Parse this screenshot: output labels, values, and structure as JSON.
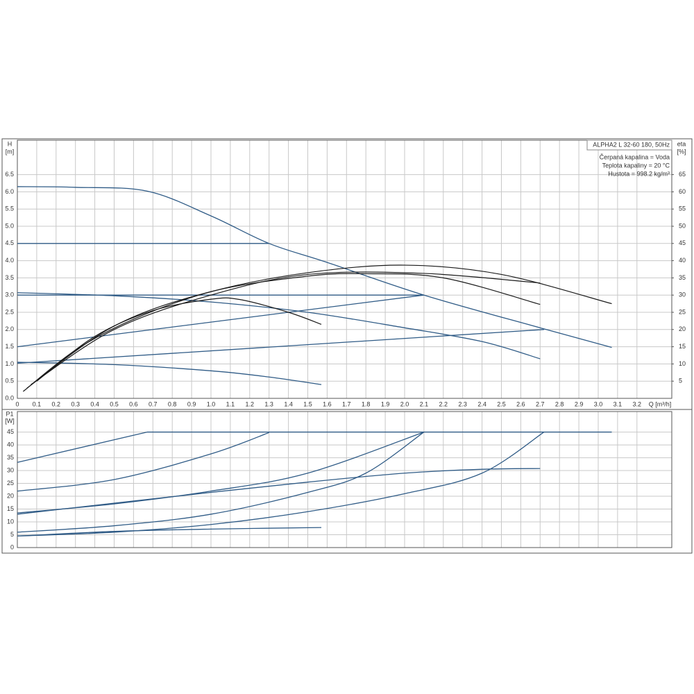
{
  "chart_data": [
    {
      "type": "line",
      "ylabel": "H",
      "yunit": "[m]",
      "y2label": "eta",
      "y2unit": "[%]",
      "xlabel": "Q [m³/h]",
      "annotations": [
        "ALPHA2 L 32-60 180, 50Hz",
        "Čerpaná kapalina = Voda",
        "Teplota kapaliny = 20 °C",
        "Hustota = 998.2 kg/m³"
      ],
      "xlim": [
        0,
        3.38
      ],
      "ylim": [
        0,
        7.5
      ],
      "y2lim": [
        0,
        75
      ],
      "xticks": [
        0,
        0.1,
        0.2,
        0.3,
        0.4,
        0.5,
        0.6,
        0.7,
        0.8,
        0.9,
        {
          "value": 1,
          "label": "1.0"
        },
        1.1,
        1.2,
        1.3,
        1.4,
        1.5,
        1.6,
        1.7,
        1.8,
        1.9,
        {
          "value": 2,
          "label": "2.0"
        },
        2.1,
        2.2,
        2.3,
        2.4,
        2.5,
        2.6,
        2.7,
        2.8,
        2.9,
        {
          "value": 3,
          "label": "3.0"
        },
        3.1,
        3.2
      ],
      "yticks": [
        {
          "value": 0,
          "label": "0.0"
        },
        0.5,
        {
          "value": 1,
          "label": "1.0"
        },
        1.5,
        {
          "value": 2,
          "label": "2.0"
        },
        2.5,
        {
          "value": 3,
          "label": "3.0"
        },
        3.5,
        {
          "value": 4,
          "label": "4.0"
        },
        4.5,
        {
          "value": 5,
          "label": "5.0"
        },
        5.5,
        {
          "value": 6,
          "label": "6.0"
        },
        6.5
      ],
      "y2ticks": [
        5,
        10,
        15,
        20,
        25,
        30,
        35,
        40,
        45,
        50,
        55,
        60,
        65
      ],
      "grid": true,
      "series": [
        {
          "color": "#2f5b86",
          "x": [
            0,
            0.3,
            0.67,
            1.0,
            1.3,
            1.6,
            2.1,
            2.7,
            3.07
          ],
          "values": [
            6.15,
            6.13,
            6.02,
            5.3,
            4.5,
            3.95,
            3.0,
            2.05,
            1.48
          ]
        },
        {
          "color": "#2f5b86",
          "x": [
            0,
            1.3
          ],
          "values": [
            4.5,
            4.5
          ]
        },
        {
          "color": "#2f5b86",
          "x": [
            0,
            2.1
          ],
          "values": [
            3.0,
            3.0
          ]
        },
        {
          "color": "#2f5b86",
          "x": [
            0,
            0.5,
            1.0,
            1.5,
            2.0,
            2.4,
            2.7
          ],
          "values": [
            3.07,
            2.98,
            2.8,
            2.5,
            2.05,
            1.65,
            1.15
          ]
        },
        {
          "color": "#2f5b86",
          "x": [
            0,
            2.1
          ],
          "values": [
            1.5,
            3.0
          ]
        },
        {
          "color": "#2f5b86",
          "x": [
            0,
            2.72
          ],
          "values": [
            1.02,
            2.0
          ]
        },
        {
          "color": "#2f5b86",
          "x": [
            0,
            0.5,
            1.0,
            1.3,
            1.57
          ],
          "values": [
            1.05,
            0.98,
            0.8,
            0.62,
            0.4
          ]
        },
        {
          "color": "#1a1a1a",
          "axis": "y2",
          "x": [
            0.03,
            0.3,
            0.6,
            1.0,
            1.5,
            2.0,
            2.5,
            3.07
          ],
          "values": [
            2,
            14,
            23,
            31,
            36.5,
            38.7,
            36,
            27.5
          ]
        },
        {
          "color": "#1a1a1a",
          "axis": "y2",
          "x": [
            0.05,
            0.5,
            1.0,
            1.5,
            1.8,
            2.2,
            2.7
          ],
          "values": [
            3,
            21,
            31,
            35.5,
            36.2,
            35,
            27.3
          ]
        },
        {
          "color": "#1a1a1a",
          "axis": "y2",
          "x": [
            0.07,
            0.5,
            1.0,
            1.5,
            2.1,
            2.7
          ],
          "values": [
            4,
            20,
            30,
            36,
            36.3,
            33.5
          ]
        },
        {
          "color": "#1a1a1a",
          "axis": "y2",
          "x": [
            0.1,
            0.4,
            0.7,
            1.0,
            1.15,
            1.4,
            1.57
          ],
          "values": [
            5,
            18,
            25.5,
            28.8,
            28.7,
            25,
            21.5
          ]
        }
      ]
    },
    {
      "type": "line",
      "ylabel": "P1",
      "yunit": "[W]",
      "xlim": [
        0,
        3.38
      ],
      "ylim": [
        0,
        53
      ],
      "yticks": [
        0,
        5,
        10,
        15,
        20,
        25,
        30,
        35,
        40,
        45
      ],
      "grid": true,
      "series": [
        {
          "color": "#2f5b86",
          "x": [
            0.67,
            3.07
          ],
          "values": [
            45,
            45
          ]
        },
        {
          "color": "#2f5b86",
          "x": [
            0,
            0.67
          ],
          "values": [
            33.2,
            45
          ]
        },
        {
          "color": "#2f5b86",
          "x": [
            0,
            0.5,
            1.0,
            1.3
          ],
          "values": [
            22,
            26.5,
            36.5,
            44.8
          ]
        },
        {
          "color": "#2f5b86",
          "x": [
            0,
            0.5,
            1.0,
            1.5,
            2.1
          ],
          "values": [
            13.5,
            17,
            22,
            29,
            45
          ]
        },
        {
          "color": "#2f5b86",
          "x": [
            0,
            0.5,
            1.0,
            1.5,
            2.0,
            2.4,
            2.7
          ],
          "values": [
            13,
            17.3,
            21.5,
            25.5,
            29,
            30.5,
            30.8
          ]
        },
        {
          "color": "#2f5b86",
          "x": [
            0,
            0.5,
            1.0,
            1.5,
            1.8,
            2.1
          ],
          "values": [
            6,
            8.5,
            13,
            21.5,
            29,
            45
          ]
        },
        {
          "color": "#2f5b86",
          "x": [
            0,
            0.5,
            1.0,
            1.5,
            2.0,
            2.4,
            2.72
          ],
          "values": [
            4.5,
            6,
            9,
            14,
            21,
            29,
            45
          ]
        },
        {
          "color": "#2f5b86",
          "x": [
            0,
            0.5,
            1.0,
            1.57
          ],
          "values": [
            4.5,
            6.3,
            7.2,
            7.8
          ]
        }
      ]
    }
  ]
}
